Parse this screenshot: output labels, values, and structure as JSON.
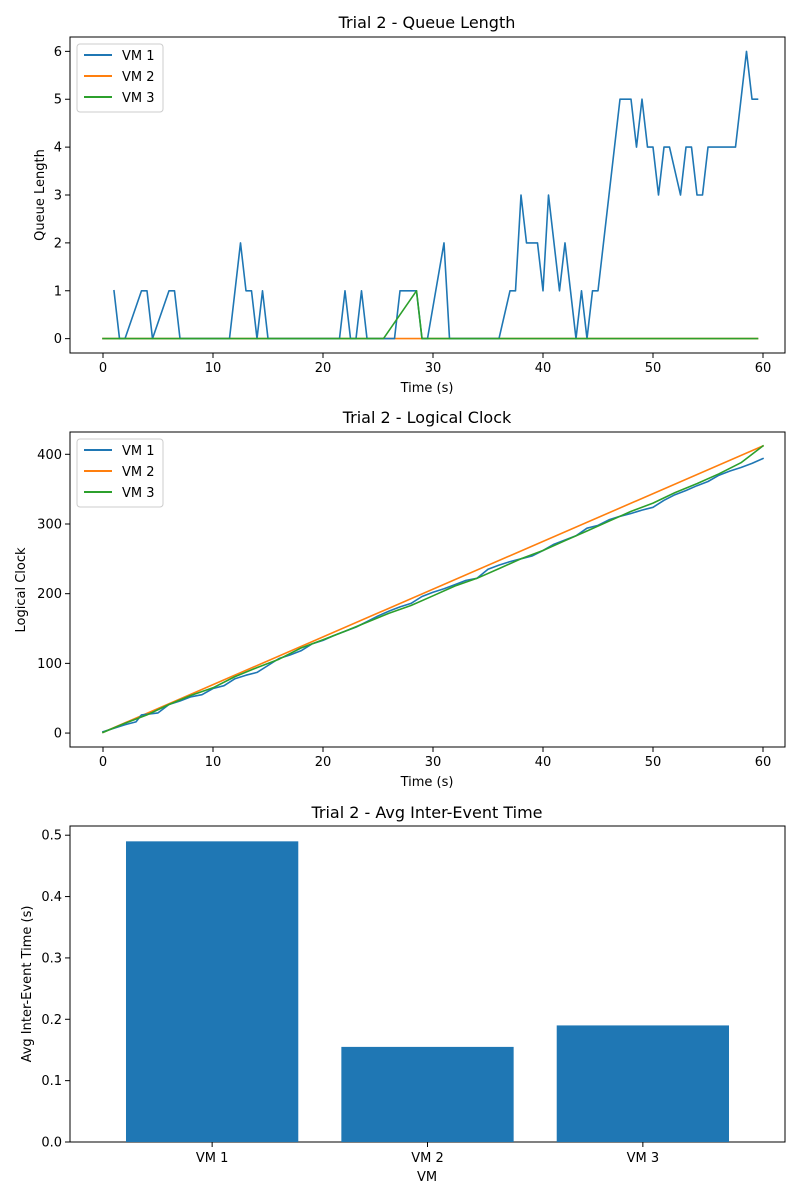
{
  "chart_data": [
    {
      "type": "line",
      "title": "Trial 2 - Queue Length",
      "xlabel": "Time (s)",
      "ylabel": "Queue Length",
      "xlim": [
        -3,
        62
      ],
      "ylim": [
        -0.3,
        6.3
      ],
      "xticks": [
        0,
        10,
        20,
        30,
        40,
        50,
        60
      ],
      "yticks": [
        0,
        1,
        2,
        3,
        4,
        5,
        6
      ],
      "grid": false,
      "legend": "top-left",
      "series": [
        {
          "name": "VM 1",
          "color": "#1f77b4",
          "x": [
            1.0,
            1.5,
            2.0,
            3.5,
            4.0,
            4.5,
            6.0,
            6.5,
            7.0,
            11.5,
            12.5,
            13.0,
            13.5,
            14.0,
            14.5,
            15.0,
            15.5,
            21.5,
            22.0,
            22.5,
            23.0,
            23.5,
            24.0,
            26.5,
            27.0,
            28.5,
            29.0,
            29.5,
            31.0,
            31.5,
            36.0,
            37.0,
            37.5,
            38.0,
            38.5,
            39.5,
            40.0,
            40.5,
            41.5,
            42.0,
            43.0,
            43.5,
            44.0,
            44.5,
            45.0,
            47.0,
            48.0,
            48.5,
            49.0,
            49.5,
            50.0,
            50.5,
            51.0,
            51.5,
            52.5,
            53.0,
            53.5,
            54.0,
            54.5,
            55.0,
            55.5,
            57.5,
            58.5,
            59.0,
            59.5
          ],
          "y": [
            1,
            0,
            0,
            1,
            1,
            0,
            1,
            1,
            0,
            0,
            2,
            1,
            1,
            0,
            1,
            0,
            0,
            0,
            1,
            0,
            0,
            1,
            0,
            0,
            1,
            1,
            0,
            0,
            2,
            0,
            0,
            1,
            1,
            3,
            2,
            2,
            1,
            3,
            1,
            2,
            0,
            1,
            0,
            1,
            1,
            5,
            5,
            4,
            5,
            4,
            4,
            3,
            4,
            4,
            3,
            4,
            4,
            3,
            3,
            4,
            4,
            4,
            6,
            5,
            5
          ]
        },
        {
          "name": "VM 2",
          "color": "#ff7f0e",
          "x": [
            0.0,
            59.5
          ],
          "y": [
            0,
            0
          ]
        },
        {
          "name": "VM 3",
          "color": "#2ca02c",
          "x": [
            0.0,
            25.5,
            28.5,
            29.0,
            59.5
          ],
          "y": [
            0,
            0,
            1,
            0,
            0
          ]
        }
      ]
    },
    {
      "type": "line",
      "title": "Trial 2 - Logical Clock",
      "xlabel": "Time (s)",
      "ylabel": "Logical Clock",
      "xlim": [
        -3,
        62
      ],
      "ylim": [
        -20,
        432
      ],
      "xticks": [
        0,
        10,
        20,
        30,
        40,
        50,
        60
      ],
      "yticks": [
        0,
        100,
        200,
        300,
        400
      ],
      "grid": false,
      "legend": "top-left",
      "series": [
        {
          "name": "VM 1",
          "color": "#1f77b4",
          "x": [
            0,
            1,
            2,
            3,
            3.5,
            5,
            6,
            7,
            8,
            9,
            10,
            11,
            12,
            13,
            14,
            15,
            16,
            17,
            18,
            19,
            20,
            21,
            22,
            23,
            24,
            25,
            26,
            27,
            28,
            29,
            30,
            31,
            32,
            33,
            34,
            35,
            36,
            37,
            38,
            39,
            40,
            41,
            42,
            43,
            44,
            45,
            46,
            47,
            48,
            49,
            50,
            51,
            52,
            53,
            54,
            55,
            56,
            57,
            58,
            59,
            60
          ],
          "y": [
            2,
            7,
            12,
            16,
            26,
            29,
            41,
            46,
            52,
            55,
            64,
            68,
            78,
            83,
            87,
            97,
            107,
            112,
            118,
            128,
            133,
            140,
            146,
            152,
            160,
            168,
            175,
            181,
            186,
            196,
            202,
            207,
            213,
            219,
            222,
            235,
            241,
            246,
            250,
            254,
            262,
            271,
            277,
            283,
            294,
            298,
            306,
            311,
            315,
            320,
            324,
            334,
            342,
            348,
            355,
            361,
            370,
            376,
            381,
            387,
            394
          ]
        },
        {
          "name": "VM 2",
          "color": "#ff7f0e",
          "x": [
            0,
            60
          ],
          "y": [
            1,
            412
          ]
        },
        {
          "name": "VM 3",
          "color": "#2ca02c",
          "x": [
            0,
            2,
            4,
            6,
            8,
            10,
            12,
            14,
            16,
            18,
            20,
            22,
            24,
            26,
            28,
            30,
            32,
            34,
            36,
            38,
            40,
            42,
            44,
            46,
            48,
            50,
            52,
            54,
            56,
            58,
            60
          ],
          "y": [
            1,
            14,
            26,
            41,
            54,
            65,
            81,
            94,
            106,
            122,
            134,
            146,
            159,
            172,
            183,
            197,
            211,
            222,
            236,
            250,
            262,
            276,
            290,
            304,
            318,
            330,
            345,
            358,
            372,
            388,
            412
          ]
        }
      ]
    },
    {
      "type": "bar",
      "title": "Trial 2 - Avg Inter-Event Time",
      "xlabel": "VM",
      "ylabel": "Avg Inter-Event Time (s)",
      "categories": [
        "VM 1",
        "VM 2",
        "VM 3"
      ],
      "values": [
        0.49,
        0.155,
        0.19
      ],
      "ylim": [
        0,
        0.515
      ],
      "yticks": [
        "0.0",
        "0.1",
        "0.2",
        "0.3",
        "0.4",
        "0.5"
      ],
      "color": "#1f77b4",
      "grid": false
    }
  ]
}
